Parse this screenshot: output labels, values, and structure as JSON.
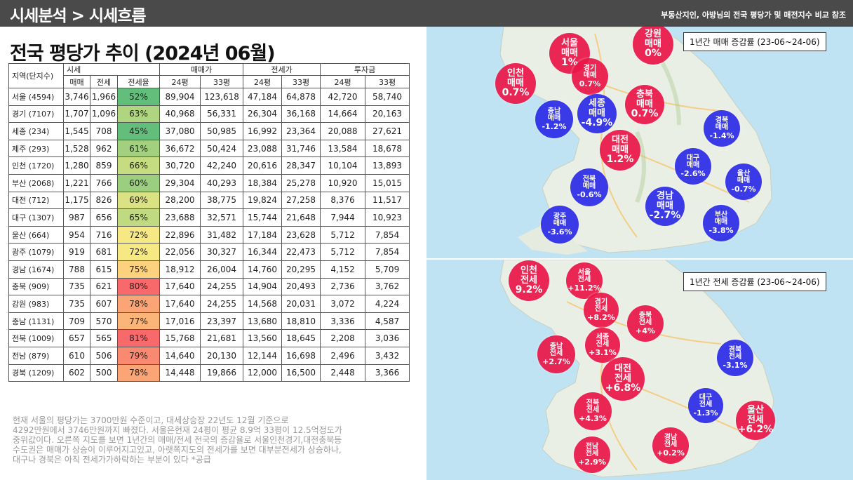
{
  "header": {
    "title": "시세분석 > 시세흐름",
    "subtitle": "부동산지인, 아방님의 전국 평당가 및 매전지수 비교 참조"
  },
  "page_title": "전국 평당가 추이 (2024년 06월)",
  "table": {
    "top_headers": [
      "지역(단지수)",
      "시세",
      "매매가",
      "전세가",
      "투자금"
    ],
    "sub_headers": [
      "매매",
      "전세",
      "전세율",
      "24평",
      "33평",
      "24평",
      "33평",
      "24평",
      "33평"
    ],
    "rows": [
      {
        "region": "서울 (4594)",
        "cells": [
          "3,746",
          "1,966",
          "52%",
          "89,904",
          "123,618",
          "47,184",
          "64,878",
          "42,720",
          "58,740"
        ],
        "ratio_color": "#63be7b"
      },
      {
        "region": "경기 (7107)",
        "cells": [
          "1,707",
          "1,096",
          "63%",
          "40,968",
          "56,331",
          "26,304",
          "36,168",
          "14,664",
          "20,163"
        ],
        "ratio_color": "#b0d580"
      },
      {
        "region": "세종 (234)",
        "cells": [
          "1,545",
          "708",
          "45%",
          "37,080",
          "50,985",
          "16,992",
          "23,364",
          "20,088",
          "27,621"
        ],
        "ratio_color": "#63be7b"
      },
      {
        "region": "제주 (293)",
        "cells": [
          "1,528",
          "962",
          "61%",
          "36,672",
          "50,424",
          "23,088",
          "31,746",
          "13,584",
          "18,678"
        ],
        "ratio_color": "#a2d07f"
      },
      {
        "region": "인천 (1720)",
        "cells": [
          "1,280",
          "859",
          "66%",
          "30,720",
          "42,240",
          "20,616",
          "28,347",
          "10,104",
          "13,893"
        ],
        "ratio_color": "#c6dc81"
      },
      {
        "region": "부산 (2068)",
        "cells": [
          "1,221",
          "766",
          "60%",
          "29,304",
          "40,293",
          "18,384",
          "25,278",
          "10,920",
          "15,015"
        ],
        "ratio_color": "#9bce7e"
      },
      {
        "region": "대전 (712)",
        "cells": [
          "1,175",
          "826",
          "69%",
          "28,200",
          "38,775",
          "19,824",
          "27,258",
          "8,376",
          "11,517"
        ],
        "ratio_color": "#dbe283"
      },
      {
        "region": "대구 (1307)",
        "cells": [
          "987",
          "656",
          "65%",
          "23,688",
          "32,571",
          "15,744",
          "21,648",
          "7,944",
          "10,923"
        ],
        "ratio_color": "#bfda81"
      },
      {
        "region": "울산 (664)",
        "cells": [
          "954",
          "716",
          "72%",
          "22,896",
          "31,482",
          "17,184",
          "23,628",
          "5,712",
          "7,854"
        ],
        "ratio_color": "#f6e883"
      },
      {
        "region": "광주 (1079)",
        "cells": [
          "919",
          "681",
          "72%",
          "22,056",
          "30,327",
          "16,344",
          "22,473",
          "5,712",
          "7,854"
        ],
        "ratio_color": "#f6e883"
      },
      {
        "region": "경남 (1674)",
        "cells": [
          "788",
          "615",
          "75%",
          "18,912",
          "26,004",
          "14,760",
          "20,295",
          "4,152",
          "5,709"
        ],
        "ratio_color": "#fdd27f"
      },
      {
        "region": "충북 (909)",
        "cells": [
          "735",
          "621",
          "80%",
          "17,640",
          "24,255",
          "14,904",
          "20,493",
          "2,736",
          "3,762"
        ],
        "ratio_color": "#f8696b"
      },
      {
        "region": "강원 (983)",
        "cells": [
          "735",
          "607",
          "78%",
          "17,640",
          "24,255",
          "14,568",
          "20,031",
          "3,072",
          "4,224"
        ],
        "ratio_color": "#fba476"
      },
      {
        "region": "충남 (1131)",
        "cells": [
          "709",
          "570",
          "77%",
          "17,016",
          "23,397",
          "13,680",
          "18,810",
          "3,336",
          "4,587"
        ],
        "ratio_color": "#fcb579"
      },
      {
        "region": "전북 (1009)",
        "cells": [
          "657",
          "565",
          "81%",
          "15,768",
          "21,681",
          "13,560",
          "18,645",
          "2,208",
          "3,036"
        ],
        "ratio_color": "#f8696b"
      },
      {
        "region": "전남 (879)",
        "cells": [
          "610",
          "506",
          "79%",
          "14,640",
          "20,130",
          "12,144",
          "16,698",
          "2,496",
          "3,432"
        ],
        "ratio_color": "#f98a71"
      },
      {
        "region": "경북 (1209)",
        "cells": [
          "602",
          "500",
          "78%",
          "14,448",
          "19,866",
          "12,000",
          "16,500",
          "2,448",
          "3,366"
        ],
        "ratio_color": "#fba476"
      }
    ]
  },
  "note": [
    "현재 서울의 평당가는 3700만원 수준이고, 대세상승장 22년도 12월 기준으로",
    "4292만원에서 3746만원까지 빠졌다. 서울은현재 24평이 평균 8.9억 33평이 12.5억정도가",
    "중위값이다. 오른쪽 지도를 보면 1년간의 매매/전세 전국의 증감율로 서울인천경기,대전충북등",
    "수도권은 매매가 상승이 이루어지고있고, 아랫쪽지도의 전세가를 보면 대부분전세가 상승하나,",
    "대구나 경북은 아직 전세가가하락하는 부분이 있다 *공급"
  ],
  "map_sale": {
    "label": "1년간 매매 증감률 (23-06~24-06)",
    "bubbles": [
      {
        "region": "인천",
        "kind": "매매",
        "value": "0.7%",
        "color": "red"
      },
      {
        "region": "서울",
        "kind": "매매",
        "value": "1%",
        "color": "red"
      },
      {
        "region": "강원",
        "kind": "매매",
        "value": "0%",
        "color": "red"
      },
      {
        "region": "경기",
        "kind": "매매",
        "value": "0.7%",
        "color": "red"
      },
      {
        "region": "충북",
        "kind": "매매",
        "value": "0.7%",
        "color": "red"
      },
      {
        "region": "충남",
        "kind": "매매",
        "value": "-1.2%",
        "color": "blue"
      },
      {
        "region": "세종",
        "kind": "매매",
        "value": "-4.9%",
        "color": "blue"
      },
      {
        "region": "경북",
        "kind": "매매",
        "value": "-1.4%",
        "color": "blue"
      },
      {
        "region": "대전",
        "kind": "매매",
        "value": "1.2%",
        "color": "red"
      },
      {
        "region": "대구",
        "kind": "매매",
        "value": "-2.6%",
        "color": "blue"
      },
      {
        "region": "울산",
        "kind": "매매",
        "value": "-0.7%",
        "color": "blue"
      },
      {
        "region": "전북",
        "kind": "매매",
        "value": "-0.6%",
        "color": "blue"
      },
      {
        "region": "경남",
        "kind": "매매",
        "value": "-2.7%",
        "color": "blue"
      },
      {
        "region": "부산",
        "kind": "매매",
        "value": "-3.8%",
        "color": "blue"
      },
      {
        "region": "광주",
        "kind": "매매",
        "value": "-3.6%",
        "color": "blue"
      }
    ]
  },
  "map_jeonse": {
    "label": "1년간 전세 증감률 (23-06~24-06)",
    "bubbles": [
      {
        "region": "인천",
        "kind": "전세",
        "value": "9.2%",
        "color": "red"
      },
      {
        "region": "서울",
        "kind": "전세",
        "value": "+11.2%",
        "color": "red"
      },
      {
        "region": "경기",
        "kind": "전세",
        "value": "+8.2%",
        "color": "red"
      },
      {
        "region": "충북",
        "kind": "전세",
        "value": "+4%",
        "color": "red"
      },
      {
        "region": "충남",
        "kind": "전세",
        "value": "+2.7%",
        "color": "red"
      },
      {
        "region": "세종",
        "kind": "전세",
        "value": "+3.1%",
        "color": "red"
      },
      {
        "region": "경북",
        "kind": "전세",
        "value": "-3.1%",
        "color": "blue"
      },
      {
        "region": "대전",
        "kind": "전세",
        "value": "+6.8%",
        "color": "red"
      },
      {
        "region": "대구",
        "kind": "전세",
        "value": "-1.3%",
        "color": "blue"
      },
      {
        "region": "전북",
        "kind": "전세",
        "value": "+4.3%",
        "color": "red"
      },
      {
        "region": "울산",
        "kind": "전세",
        "value": "+6.2%",
        "color": "red"
      },
      {
        "region": "전남",
        "kind": "전세",
        "value": "+2.9%",
        "color": "red"
      },
      {
        "region": "경남",
        "kind": "전세",
        "value": "+0.2%",
        "color": "red"
      }
    ]
  }
}
